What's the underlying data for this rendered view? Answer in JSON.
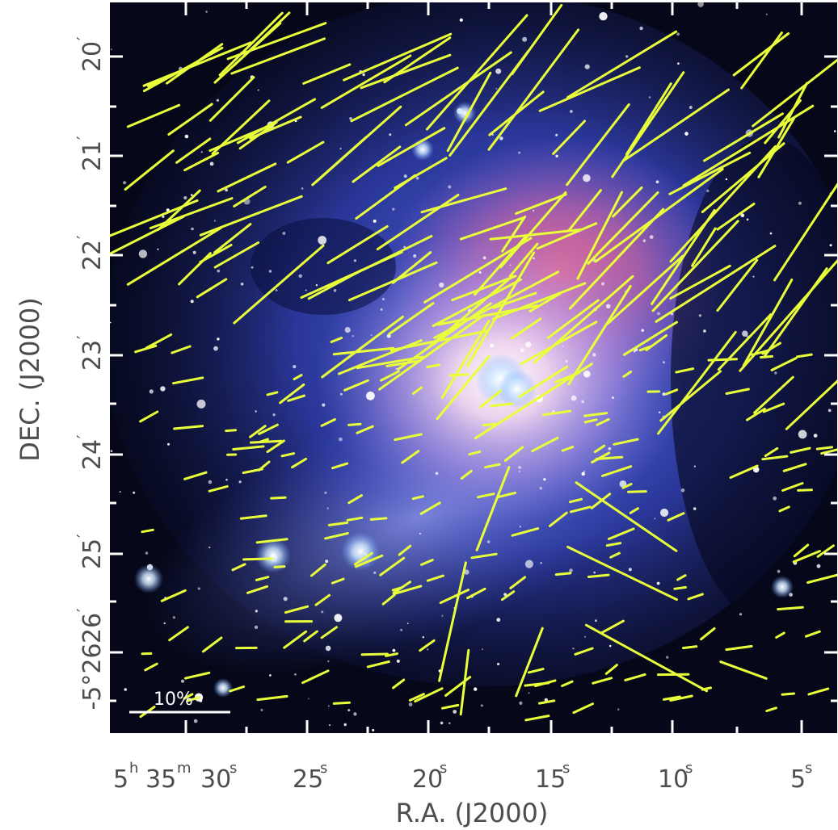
{
  "figure": {
    "x_axis_label": "R.A. (J2000)",
    "y_axis_label": "DEC. (J2000)",
    "scale_bar_label": "10%",
    "x_ticks": [
      {
        "hours": "5",
        "minutes": "35",
        "seconds": "30",
        "label": "30"
      },
      {
        "label": "25"
      },
      {
        "label": "20"
      },
      {
        "label": "15"
      },
      {
        "label": "10"
      },
      {
        "label": "5"
      }
    ],
    "y_ticks": [
      {
        "label": "20"
      },
      {
        "label": "21"
      },
      {
        "label": "22"
      },
      {
        "label": "23"
      },
      {
        "label": "24"
      },
      {
        "label": "25"
      },
      {
        "label": "26"
      },
      {
        "label": "-5°26"
      }
    ],
    "units": {
      "hours": "h",
      "minutes": "m",
      "seconds": "s",
      "arcmin": "′"
    },
    "colors": {
      "background_sky": "#06081a",
      "nebula_blue": "#3a4fd0",
      "nebula_core": "#f2d6ee",
      "nebula_red": "#ff5a7a",
      "vectors": "#e8ff3a",
      "frame_ticks": "#ffffff",
      "labels": "#4d4d4d"
    }
  }
}
